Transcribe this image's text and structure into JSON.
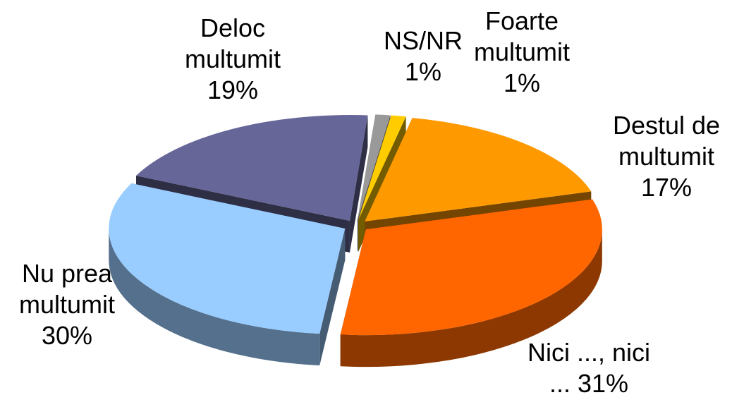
{
  "chart_data": {
    "type": "pie",
    "categories": [
      "Foarte multumit",
      "Destul de multumit",
      "Nici ..., nici ...",
      "Nu prea multumit",
      "Deloc multumit",
      "NS/NR"
    ],
    "values": [
      1,
      17,
      31,
      30,
      19,
      1
    ],
    "value_labels": [
      "1%",
      "17%",
      "31%",
      "30%",
      "19%",
      "1%"
    ],
    "colors": [
      "#ffcc00",
      "#ff9900",
      "#ff6600",
      "#99ccff",
      "#666699",
      "#999999"
    ]
  }
}
